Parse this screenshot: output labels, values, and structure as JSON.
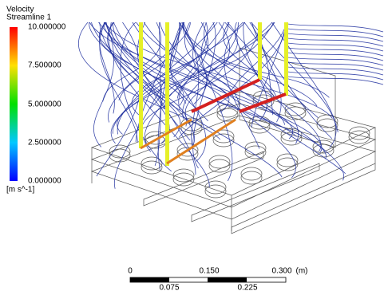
{
  "legend": {
    "title": "Velocity",
    "subtitle": "Streamline 1",
    "ticks": [
      "10.000000",
      "7.500000",
      "5.000000",
      "2.500000",
      "0.000000"
    ],
    "unit": "[m s^-1]"
  },
  "scale_bar": {
    "top_labels": [
      "0",
      "0.150",
      "0.300",
      "(m)"
    ],
    "bottom_labels": [
      "0.075",
      "0.225"
    ]
  }
}
